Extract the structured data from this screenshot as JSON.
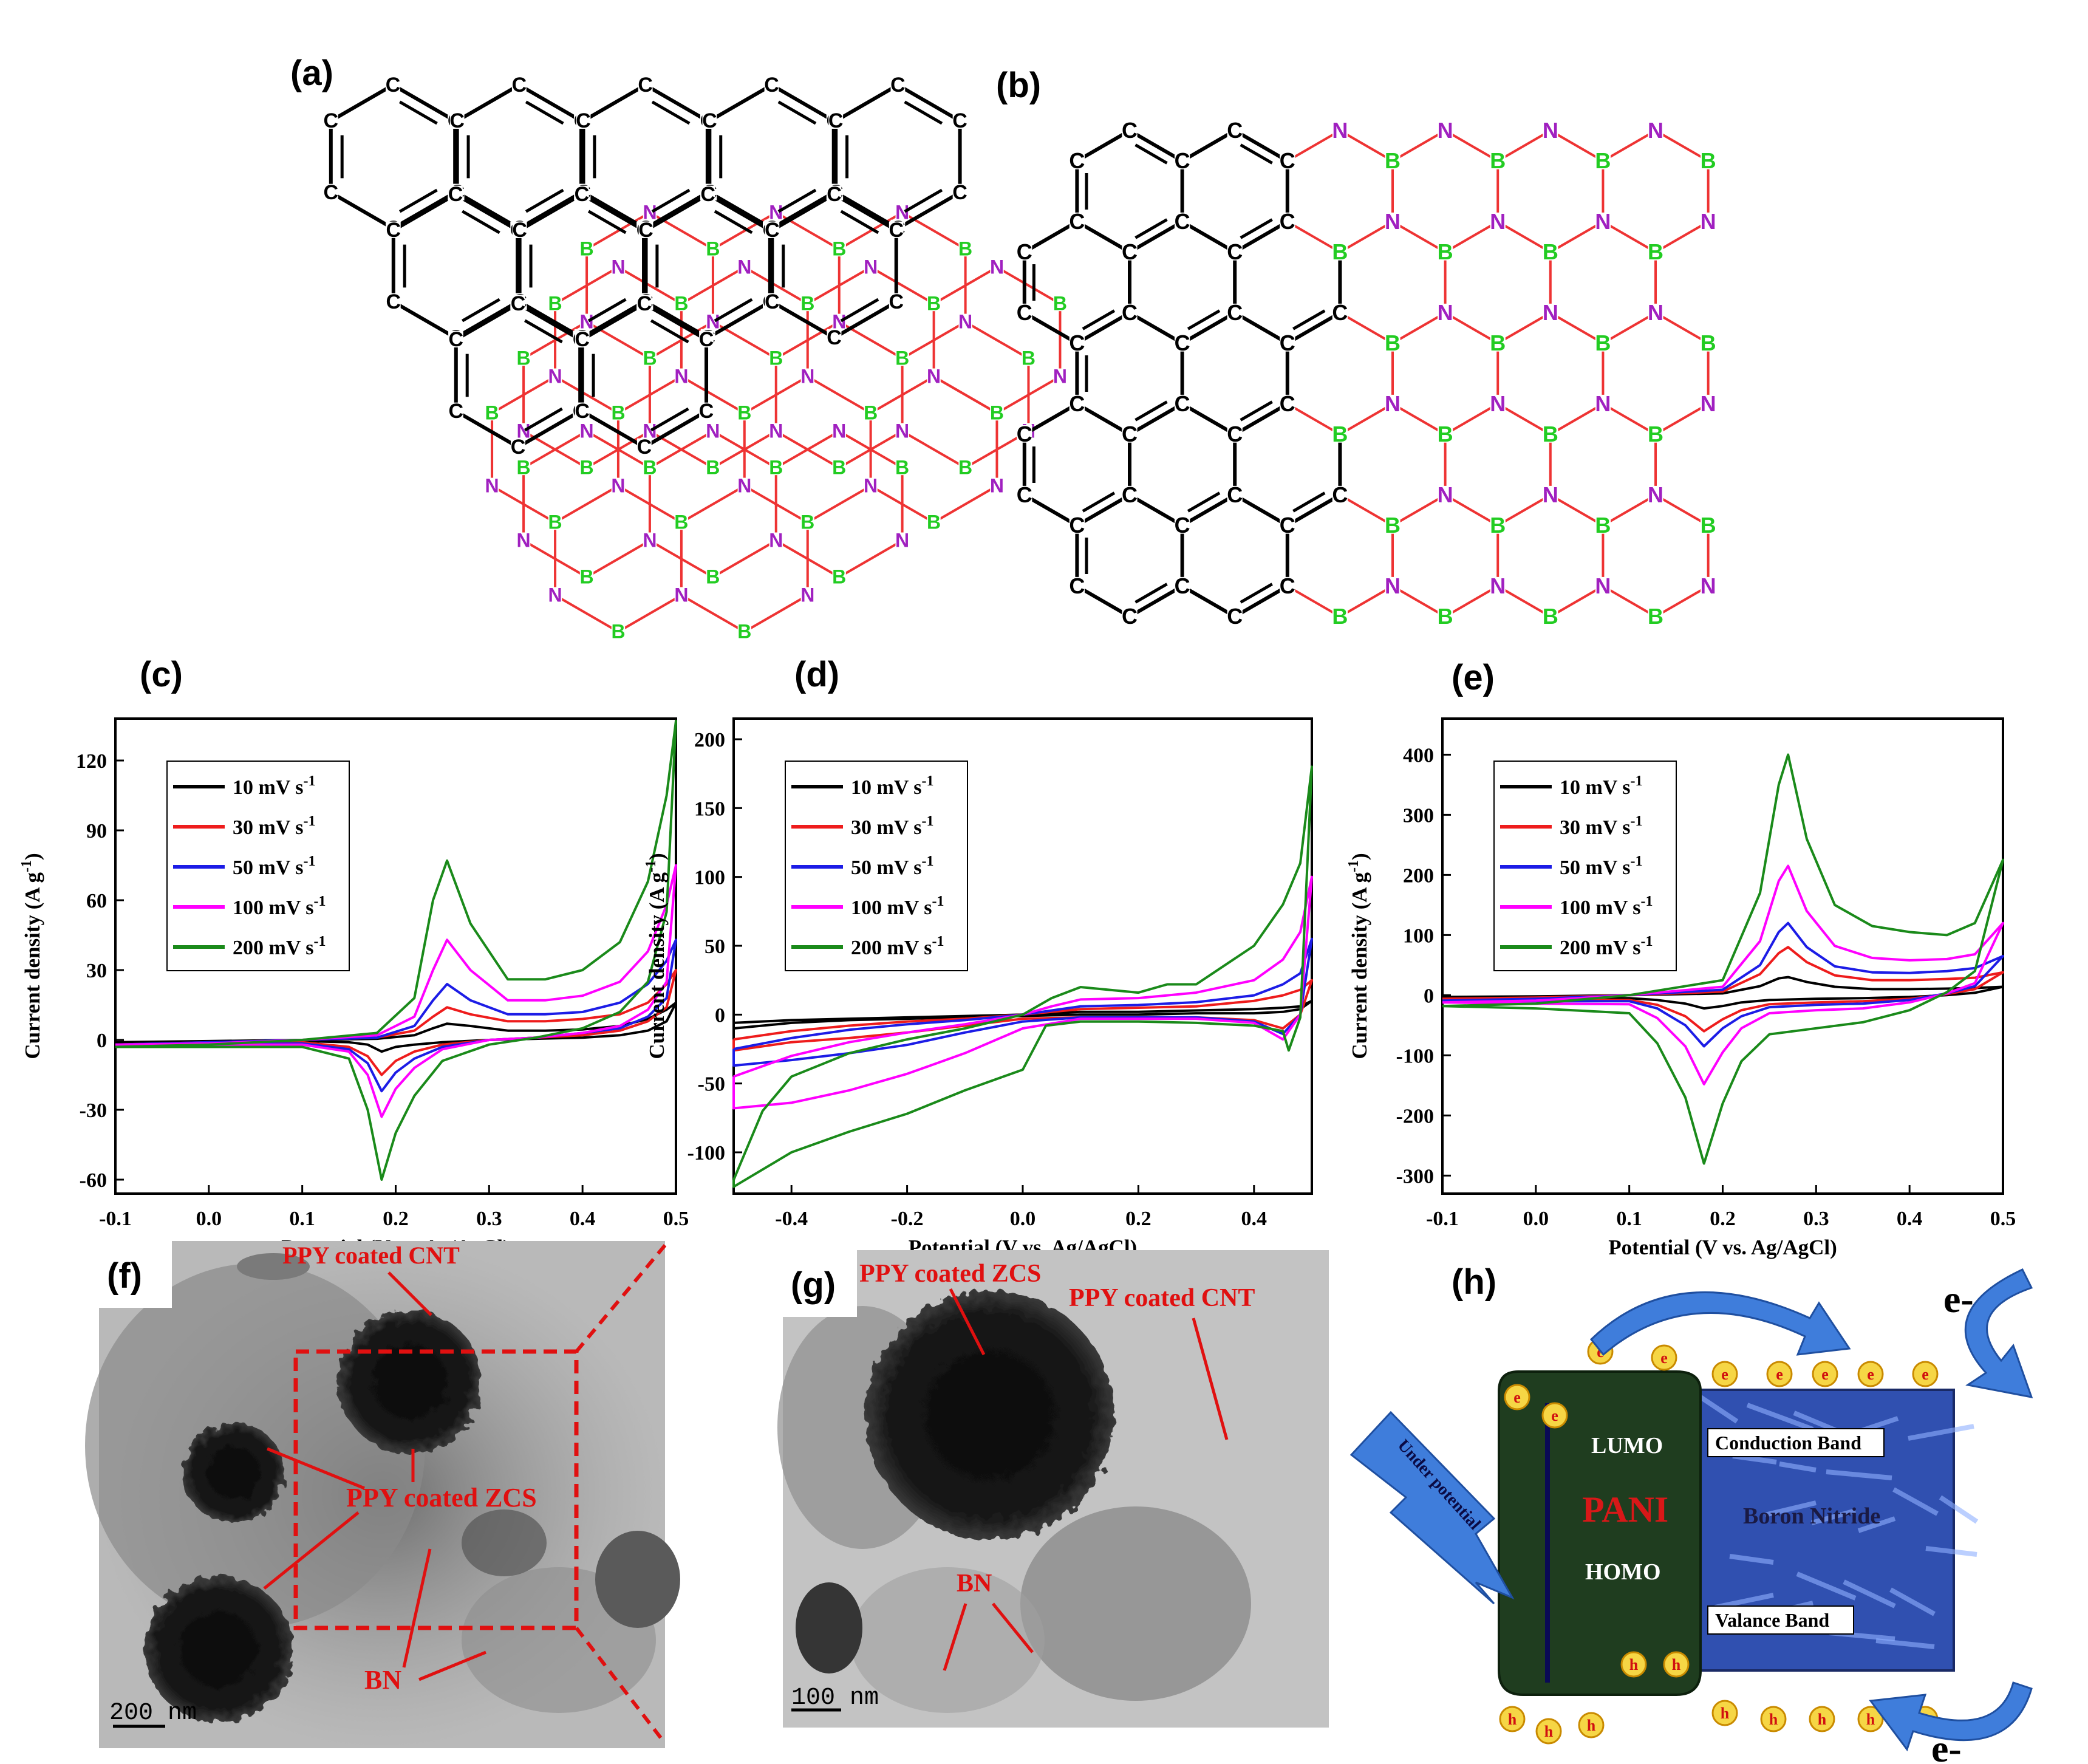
{
  "panels": {
    "a": {
      "label": "(a)"
    },
    "b": {
      "label": "(b)"
    },
    "c": {
      "label": "(c)"
    },
    "d": {
      "label": "(d)"
    },
    "e": {
      "label": "(e)"
    },
    "f": {
      "label": "(f)",
      "annotations": [
        "PPY coated CNT",
        "PPY coated ZCS",
        "BN"
      ],
      "scalebar": "200  nm"
    },
    "g": {
      "label": "(g)",
      "annotations": [
        "PPY coated ZCS",
        "PPY coated CNT",
        "BN"
      ],
      "scalebar": "100  nm"
    },
    "h": {
      "label": "(h)",
      "lumo": "LUMO",
      "homo": "HOMO",
      "pani": "PANI",
      "conduction": "Conduction Band",
      "valance": "Valance Band",
      "bn": "Boron Nitride",
      "potential": "Under potential",
      "electron": "e",
      "hole": "h",
      "e_minus": "e-"
    }
  },
  "colors": {
    "s10": "#000000",
    "s30": "#ee1c1c",
    "s50": "#1c1ce6",
    "s100": "#ff00ff",
    "s200": "#1a8a1a",
    "boron": "#22cc22",
    "nitrogen": "#a020c0",
    "bond_bn": "#ee3333",
    "bond_cbn": "#3333ee",
    "annotation": "#e01010",
    "pani": "#1f3d1f",
    "bn_panel": "#3050b0",
    "arrow": "#3f7ddb"
  },
  "chart_data": [
    {
      "panel": "c",
      "type": "line",
      "xlabel": "Potential (V vs. Ag/AgCl)",
      "ylabel": "Current density (A g-1)",
      "xlim": [
        -0.1,
        0.5
      ],
      "ylim": [
        -66,
        138
      ],
      "xticks": [
        "-0.1",
        "0.0",
        "0.1",
        "0.2",
        "0.3",
        "0.4",
        "0.5"
      ],
      "yticks": [
        "-60",
        "-30",
        "0",
        "30",
        "60",
        "90",
        "120"
      ],
      "legend_position": "top-left",
      "series": [
        {
          "name": "10 mV s-1",
          "x": [
            -0.1,
            0.0,
            0.1,
            0.18,
            0.22,
            0.24,
            0.255,
            0.28,
            0.32,
            0.36,
            0.4,
            0.44,
            0.47,
            0.49,
            0.5,
            0.49,
            0.47,
            0.44,
            0.4,
            0.35,
            0.3,
            0.25,
            0.22,
            0.2,
            0.185,
            0.17,
            0.15,
            0.1,
            0.0,
            -0.1
          ],
          "y": [
            -1,
            -0.5,
            0,
            0.5,
            2,
            5,
            7,
            6,
            4,
            4,
            4.5,
            6,
            9,
            13,
            16,
            8,
            4,
            2,
            1,
            0.5,
            0,
            -1,
            -2,
            -3,
            -5,
            -2,
            -1,
            -0.5,
            -1,
            -1
          ]
        },
        {
          "name": "30 mV s-1",
          "x": [
            -0.1,
            0.0,
            0.1,
            0.18,
            0.22,
            0.24,
            0.255,
            0.28,
            0.32,
            0.36,
            0.4,
            0.44,
            0.47,
            0.49,
            0.5,
            0.49,
            0.47,
            0.44,
            0.4,
            0.35,
            0.3,
            0.25,
            0.22,
            0.2,
            0.185,
            0.17,
            0.15,
            0.1,
            0.0,
            -0.1
          ],
          "y": [
            -2,
            -1,
            0,
            1,
            4,
            10,
            14,
            11,
            8,
            8,
            9,
            11,
            16,
            24,
            30,
            14,
            8,
            4,
            2,
            1,
            0,
            -2,
            -5,
            -9,
            -15,
            -7,
            -3,
            -1,
            -1.5,
            -2
          ]
        },
        {
          "name": "50 mV s-1",
          "x": [
            -0.1,
            0.0,
            0.1,
            0.18,
            0.22,
            0.24,
            0.255,
            0.28,
            0.32,
            0.36,
            0.4,
            0.44,
            0.47,
            0.49,
            0.5,
            0.49,
            0.47,
            0.44,
            0.4,
            0.35,
            0.3,
            0.25,
            0.22,
            0.2,
            0.185,
            0.17,
            0.15,
            0.1,
            0.0,
            -0.1
          ],
          "y": [
            -2,
            -1,
            0,
            1,
            6,
            17,
            24,
            17,
            11,
            11,
            12,
            16,
            24,
            34,
            43,
            18,
            10,
            5,
            3,
            1,
            0,
            -3,
            -8,
            -14,
            -22,
            -10,
            -4,
            -1.5,
            -2,
            -2
          ]
        },
        {
          "name": "100 mV s-1",
          "x": [
            -0.1,
            0.0,
            0.1,
            0.18,
            0.22,
            0.24,
            0.255,
            0.28,
            0.32,
            0.36,
            0.4,
            0.44,
            0.47,
            0.49,
            0.5,
            0.49,
            0.47,
            0.44,
            0.4,
            0.35,
            0.3,
            0.25,
            0.22,
            0.2,
            0.185,
            0.17,
            0.15,
            0.1,
            0.0,
            -0.1
          ],
          "y": [
            -2,
            -1.5,
            0,
            2,
            10,
            30,
            43,
            30,
            17,
            17,
            19,
            25,
            38,
            58,
            75,
            25,
            13,
            6,
            3,
            1,
            0,
            -4,
            -12,
            -21,
            -33,
            -15,
            -5,
            -2,
            -2,
            -2
          ]
        },
        {
          "name": "200 mV s-1",
          "x": [
            -0.1,
            0.0,
            0.1,
            0.18,
            0.22,
            0.24,
            0.255,
            0.28,
            0.32,
            0.36,
            0.4,
            0.44,
            0.47,
            0.49,
            0.5,
            0.49,
            0.47,
            0.44,
            0.4,
            0.35,
            0.3,
            0.25,
            0.22,
            0.2,
            0.185,
            0.17,
            0.15,
            0.1,
            0.0,
            -0.1
          ],
          "y": [
            -3,
            -2,
            0,
            3,
            18,
            60,
            77,
            50,
            26,
            26,
            30,
            42,
            68,
            105,
            137,
            55,
            25,
            12,
            5,
            1,
            -2,
            -9,
            -24,
            -40,
            -60,
            -30,
            -8,
            -3,
            -3,
            -3
          ]
        }
      ]
    },
    {
      "panel": "d",
      "type": "line",
      "xlabel": "Potential (V vs. Ag/AgCl)",
      "ylabel": "Current density (A g-1)",
      "xlim": [
        -0.5,
        0.5
      ],
      "ylim": [
        -130,
        215
      ],
      "xticks": [
        "-0.4",
        "-0.2",
        "0.0",
        "0.2",
        "0.4"
      ],
      "yticks": [
        "-100",
        "-50",
        "0",
        "50",
        "100",
        "150",
        "200"
      ],
      "legend_position": "top-left",
      "series": [
        {
          "name": "10 mV s-1",
          "x": [
            -0.5,
            -0.4,
            -0.3,
            -0.2,
            -0.1,
            0.0,
            0.05,
            0.1,
            0.2,
            0.3,
            0.4,
            0.45,
            0.48,
            0.5,
            0.48,
            0.45,
            0.4,
            0.3,
            0.2,
            0.1,
            0.0,
            -0.1,
            -0.2,
            -0.3,
            -0.4,
            -0.5
          ],
          "y": [
            -6,
            -4,
            -3,
            -2,
            -1,
            0,
            1,
            2,
            2,
            3,
            4,
            5,
            6,
            10,
            4,
            2,
            1,
            1,
            0,
            0,
            -1,
            -2,
            -3,
            -4,
            -6,
            -10
          ]
        },
        {
          "name": "30 mV s-1",
          "x": [
            -0.5,
            -0.4,
            -0.3,
            -0.2,
            -0.1,
            0.0,
            0.05,
            0.1,
            0.2,
            0.3,
            0.4,
            0.45,
            0.48,
            0.5,
            0.48,
            0.45,
            0.4,
            0.3,
            0.2,
            0.1,
            0.0,
            -0.1,
            -0.2,
            -0.3,
            -0.4,
            -0.5
          ],
          "y": [
            -18,
            -12,
            -8,
            -5,
            -3,
            0,
            2,
            4,
            5,
            6,
            10,
            14,
            18,
            25,
            0,
            -10,
            -4,
            -2,
            -2,
            -2,
            -3,
            -8,
            -13,
            -17,
            -20,
            -26
          ]
        },
        {
          "name": "50 mV s-1",
          "x": [
            -0.5,
            -0.4,
            -0.3,
            -0.2,
            -0.1,
            0.0,
            0.05,
            0.1,
            0.2,
            0.3,
            0.4,
            0.45,
            0.48,
            0.5,
            0.48,
            0.45,
            0.4,
            0.3,
            0.2,
            0.1,
            0.0,
            -0.1,
            -0.2,
            -0.3,
            -0.4,
            -0.5
          ],
          "y": [
            -25,
            -17,
            -11,
            -7,
            -4,
            0,
            3,
            6,
            7,
            9,
            14,
            22,
            30,
            55,
            0,
            -14,
            -5,
            -2,
            -2,
            -2,
            -5,
            -13,
            -22,
            -28,
            -33,
            -37
          ]
        },
        {
          "name": "100 mV s-1",
          "x": [
            -0.5,
            -0.4,
            -0.3,
            -0.2,
            -0.1,
            0.0,
            0.05,
            0.1,
            0.2,
            0.3,
            0.4,
            0.45,
            0.48,
            0.5,
            0.48,
            0.45,
            0.4,
            0.3,
            0.2,
            0.1,
            0.0,
            -0.1,
            -0.2,
            -0.3,
            -0.4,
            -0.5
          ],
          "y": [
            -45,
            -30,
            -20,
            -13,
            -7,
            0,
            6,
            11,
            12,
            16,
            25,
            40,
            60,
            100,
            0,
            -18,
            -6,
            -3,
            -3,
            -3,
            -10,
            -28,
            -43,
            -55,
            -64,
            -68
          ]
        },
        {
          "name": "200 mV s-1",
          "x": [
            -0.5,
            -0.45,
            -0.4,
            -0.3,
            -0.2,
            -0.1,
            0.0,
            0.05,
            0.1,
            0.2,
            0.25,
            0.3,
            0.4,
            0.45,
            0.48,
            0.5,
            0.48,
            0.46,
            0.45,
            0.4,
            0.3,
            0.2,
            0.1,
            0.04,
            0.0,
            -0.1,
            -0.2,
            -0.3,
            -0.4,
            -0.5
          ],
          "y": [
            -120,
            -70,
            -45,
            -28,
            -18,
            -10,
            0,
            12,
            20,
            16,
            22,
            22,
            50,
            80,
            110,
            180,
            -2,
            -26,
            -12,
            -8,
            -6,
            -5,
            -5,
            -8,
            -40,
            -55,
            -72,
            -85,
            -100,
            -125
          ]
        }
      ]
    },
    {
      "panel": "e",
      "type": "line",
      "xlabel": "Potential (V vs. Ag/AgCl)",
      "ylabel": "Current density (A g-1)",
      "xlim": [
        -0.1,
        0.5
      ],
      "ylim": [
        -330,
        460
      ],
      "xticks": [
        "-0.1",
        "0.0",
        "0.1",
        "0.2",
        "0.3",
        "0.4",
        "0.5"
      ],
      "yticks": [
        "-300",
        "-200",
        "-100",
        "0",
        "100",
        "200",
        "300",
        "400"
      ],
      "legend_position": "top-left",
      "series": [
        {
          "name": "10 mV s-1",
          "x": [
            -0.1,
            0.0,
            0.1,
            0.2,
            0.24,
            0.26,
            0.27,
            0.29,
            0.32,
            0.36,
            0.4,
            0.44,
            0.47,
            0.5,
            0.47,
            0.44,
            0.4,
            0.35,
            0.3,
            0.25,
            0.22,
            0.2,
            0.18,
            0.16,
            0.13,
            0.1,
            0.0,
            -0.1
          ],
          "y": [
            -3,
            -2,
            0,
            3,
            15,
            28,
            30,
            22,
            14,
            10,
            10,
            11,
            12,
            14,
            4,
            0,
            -3,
            -5,
            -6,
            -8,
            -12,
            -18,
            -22,
            -14,
            -8,
            -5,
            -4,
            -3
          ]
        },
        {
          "name": "30 mV s-1",
          "x": [
            -0.1,
            0.0,
            0.1,
            0.2,
            0.24,
            0.26,
            0.27,
            0.29,
            0.32,
            0.36,
            0.4,
            0.44,
            0.47,
            0.5,
            0.47,
            0.44,
            0.4,
            0.35,
            0.3,
            0.25,
            0.22,
            0.2,
            0.18,
            0.16,
            0.13,
            0.1,
            0.0,
            -0.1
          ],
          "y": [
            -6,
            -4,
            0,
            6,
            35,
            70,
            80,
            55,
            33,
            25,
            25,
            27,
            29,
            38,
            10,
            2,
            -6,
            -10,
            -12,
            -15,
            -25,
            -40,
            -60,
            -35,
            -16,
            -8,
            -7,
            -6
          ]
        },
        {
          "name": "50 mV s-1",
          "x": [
            -0.1,
            0.0,
            0.1,
            0.2,
            0.24,
            0.26,
            0.27,
            0.29,
            0.32,
            0.36,
            0.4,
            0.44,
            0.47,
            0.5,
            0.47,
            0.44,
            0.4,
            0.35,
            0.3,
            0.25,
            0.22,
            0.2,
            0.18,
            0.16,
            0.13,
            0.1,
            0.0,
            -0.1
          ],
          "y": [
            -9,
            -6,
            0,
            9,
            50,
            105,
            120,
            80,
            48,
            38,
            37,
            40,
            45,
            65,
            15,
            3,
            -8,
            -14,
            -16,
            -20,
            -35,
            -55,
            -85,
            -50,
            -22,
            -10,
            -10,
            -9
          ]
        },
        {
          "name": "100 mV s-1",
          "x": [
            -0.1,
            0.0,
            0.1,
            0.2,
            0.24,
            0.26,
            0.27,
            0.29,
            0.32,
            0.36,
            0.4,
            0.44,
            0.47,
            0.5,
            0.47,
            0.44,
            0.4,
            0.35,
            0.3,
            0.25,
            0.22,
            0.2,
            0.18,
            0.16,
            0.13,
            0.1,
            0.0,
            -0.1
          ],
          "y": [
            -12,
            -9,
            0,
            14,
            90,
            190,
            215,
            140,
            82,
            62,
            58,
            60,
            68,
            120,
            20,
            3,
            -12,
            -22,
            -25,
            -30,
            -55,
            -95,
            -148,
            -85,
            -38,
            -15,
            -14,
            -12
          ]
        },
        {
          "name": "200 mV s-1",
          "x": [
            -0.1,
            0.0,
            0.1,
            0.2,
            0.24,
            0.26,
            0.27,
            0.29,
            0.32,
            0.36,
            0.4,
            0.44,
            0.47,
            0.5,
            0.47,
            0.44,
            0.4,
            0.35,
            0.3,
            0.25,
            0.22,
            0.2,
            0.18,
            0.16,
            0.13,
            0.1,
            0.0,
            -0.1
          ],
          "y": [
            -18,
            -14,
            0,
            25,
            170,
            350,
            400,
            260,
            150,
            115,
            105,
            100,
            120,
            225,
            40,
            5,
            -25,
            -45,
            -55,
            -65,
            -110,
            -180,
            -280,
            -170,
            -80,
            -30,
            -22,
            -18
          ]
        }
      ]
    }
  ]
}
